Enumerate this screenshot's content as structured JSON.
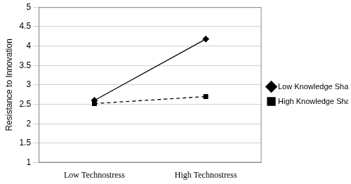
{
  "chart_data": {
    "type": "line",
    "y_label": "Resistance to Innovation",
    "categories": [
      "Low Technostress",
      "High Technostress"
    ],
    "series": [
      {
        "name": "Low Knowledge Sharing Culture",
        "color": "#000000",
        "marker": "diamond",
        "line_style": "solid",
        "values": [
          2.6,
          4.18
        ]
      },
      {
        "name": "High Knowledge Sharing Culture",
        "color": "#000000",
        "marker": "square",
        "line_style": "dashed",
        "values": [
          2.52,
          2.7
        ]
      }
    ],
    "ylim": [
      1,
      5
    ],
    "yticks": [
      1,
      1.5,
      2,
      2.5,
      3,
      3.5,
      4,
      4.5,
      5
    ],
    "grid": true,
    "legend": "right"
  }
}
